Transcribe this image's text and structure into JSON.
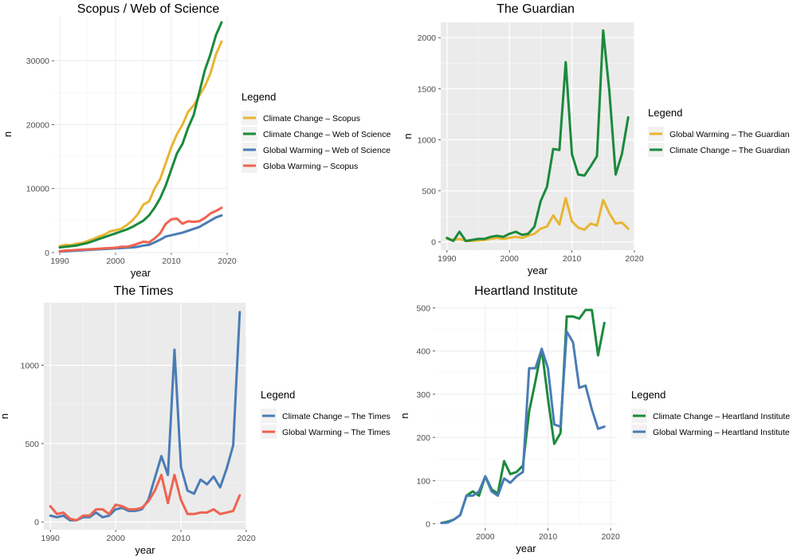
{
  "chart_data": [
    {
      "type": "line",
      "title": "Scopus / Web of Science",
      "xlabel": "year",
      "ylabel": "n",
      "xlim": [
        1989,
        2020
      ],
      "ylim": [
        0,
        37000
      ],
      "xticks": [
        1990,
        2000,
        2010,
        2020
      ],
      "yticks": [
        0,
        10000,
        20000,
        30000
      ],
      "ytick_labels": [
        "0",
        "10000",
        "20000",
        "30000"
      ],
      "background": "#ffffff",
      "grid": true,
      "legend_title": "Legend",
      "legend_position": "right",
      "series": [
        {
          "name": "Climate Change – Scopus",
          "color": "#E8B532",
          "x": [
            1990,
            1991,
            1992,
            1993,
            1994,
            1995,
            1996,
            1997,
            1998,
            1999,
            2000,
            2001,
            2002,
            2003,
            2004,
            2005,
            2006,
            2007,
            2008,
            2009,
            2010,
            2011,
            2012,
            2013,
            2014,
            2015,
            2016,
            2017,
            2018,
            2019
          ],
          "y": [
            1000,
            1200,
            1150,
            1400,
            1500,
            1800,
            2100,
            2500,
            2800,
            3300,
            3500,
            3700,
            4300,
            5000,
            6000,
            7500,
            8000,
            10000,
            11500,
            14000,
            16500,
            18500,
            20000,
            22000,
            23000,
            24500,
            26000,
            28000,
            31000,
            33000
          ]
        },
        {
          "name": "Climate Change – Web of Science",
          "color": "#1B8A3C",
          "x": [
            1990,
            1991,
            1992,
            1993,
            1994,
            1995,
            1996,
            1997,
            1998,
            1999,
            2000,
            2001,
            2002,
            2003,
            2004,
            2005,
            2006,
            2007,
            2008,
            2009,
            2010,
            2011,
            2012,
            2013,
            2014,
            2015,
            2016,
            2017,
            2018,
            2019
          ],
          "y": [
            800,
            900,
            1000,
            1100,
            1300,
            1500,
            1800,
            2100,
            2400,
            2700,
            3000,
            3300,
            3600,
            4000,
            4500,
            5000,
            5800,
            7000,
            8500,
            10500,
            13000,
            15500,
            17000,
            19500,
            21500,
            25000,
            28500,
            31000,
            34000,
            36000
          ]
        },
        {
          "name": "Global Warming – Web of Science",
          "color": "#4A7CB5",
          "x": [
            1990,
            1991,
            1992,
            1993,
            1994,
            1995,
            1996,
            1997,
            1998,
            1999,
            2000,
            2001,
            2002,
            2003,
            2004,
            2005,
            2006,
            2007,
            2008,
            2009,
            2010,
            2011,
            2012,
            2013,
            2014,
            2015,
            2016,
            2017,
            2018,
            2019
          ],
          "y": [
            150,
            200,
            250,
            300,
            350,
            400,
            450,
            500,
            550,
            600,
            650,
            700,
            750,
            800,
            900,
            1100,
            1200,
            1600,
            2000,
            2500,
            2700,
            2900,
            3100,
            3400,
            3700,
            4000,
            4500,
            5000,
            5500,
            5800
          ]
        },
        {
          "name": "Globa Warming – Scopus",
          "color": "#EE6350",
          "x": [
            1990,
            1991,
            1992,
            1993,
            1994,
            1995,
            1996,
            1997,
            1998,
            1999,
            2000,
            2001,
            2002,
            2003,
            2004,
            2005,
            2006,
            2007,
            2008,
            2009,
            2010,
            2011,
            2012,
            2013,
            2014,
            2015,
            2016,
            2017,
            2018,
            2019
          ],
          "y": [
            200,
            300,
            350,
            400,
            450,
            500,
            550,
            600,
            650,
            700,
            750,
            900,
            900,
            1100,
            1400,
            1700,
            1600,
            2200,
            3000,
            4500,
            5200,
            5300,
            4500,
            4900,
            4800,
            4900,
            5400,
            6100,
            6500,
            7000
          ]
        }
      ]
    },
    {
      "type": "line",
      "title": "The Guardian",
      "xlabel": "year",
      "ylabel": "n",
      "xlim": [
        1989,
        2020
      ],
      "ylim": [
        -80,
        2150
      ],
      "xticks": [
        1990,
        2000,
        2010,
        2020
      ],
      "yticks": [
        0,
        500,
        1000,
        1500,
        2000
      ],
      "ytick_labels": [
        "0",
        "500",
        "1000",
        "1500",
        "2000"
      ],
      "background": "#ebebeb",
      "grid": true,
      "legend_title": "Legend",
      "legend_position": "right",
      "series": [
        {
          "name": "Global Warming – The Guardian",
          "color": "#E8B532",
          "x": [
            1990,
            1991,
            1992,
            1993,
            1994,
            1995,
            1996,
            1997,
            1998,
            1999,
            2000,
            2001,
            2002,
            2003,
            2004,
            2005,
            2006,
            2007,
            2008,
            2009,
            2010,
            2011,
            2012,
            2013,
            2014,
            2015,
            2016,
            2017,
            2018,
            2019
          ],
          "y": [
            30,
            20,
            30,
            10,
            10,
            15,
            20,
            30,
            40,
            30,
            40,
            50,
            40,
            60,
            80,
            130,
            150,
            260,
            170,
            430,
            200,
            140,
            120,
            180,
            160,
            410,
            280,
            180,
            190,
            130
          ]
        },
        {
          "name": "Climate Change – The Guardian",
          "color": "#1B8A3C",
          "x": [
            1990,
            1991,
            1992,
            1993,
            1994,
            1995,
            1996,
            1997,
            1998,
            1999,
            2000,
            2001,
            2002,
            2003,
            2004,
            2005,
            2006,
            2007,
            2008,
            2009,
            2010,
            2011,
            2012,
            2013,
            2014,
            2015,
            2016,
            2017,
            2018,
            2019
          ],
          "y": [
            40,
            10,
            100,
            10,
            20,
            30,
            30,
            50,
            60,
            50,
            80,
            100,
            70,
            80,
            150,
            400,
            540,
            910,
            900,
            1760,
            860,
            660,
            650,
            740,
            840,
            2070,
            1470,
            660,
            860,
            1220
          ]
        }
      ]
    },
    {
      "type": "line",
      "title": "The Times",
      "xlabel": "year",
      "ylabel": "n",
      "xlim": [
        1989,
        2020
      ],
      "ylim": [
        -50,
        1400
      ],
      "xticks": [
        1990,
        2000,
        2010,
        2020
      ],
      "yticks": [
        0,
        500,
        1000
      ],
      "ytick_labels": [
        "0",
        "500",
        "1000"
      ],
      "background": "#ebebeb",
      "grid": true,
      "legend_title": "Legend",
      "legend_position": "right",
      "series": [
        {
          "name": "Climate Change – The Times",
          "color": "#4A7CB5",
          "x": [
            1990,
            1991,
            1992,
            1993,
            1994,
            1995,
            1996,
            1997,
            1998,
            1999,
            2000,
            2001,
            2002,
            2003,
            2004,
            2005,
            2006,
            2007,
            2008,
            2009,
            2010,
            2011,
            2012,
            2013,
            2014,
            2015,
            2016,
            2017,
            2018,
            2019
          ],
          "y": [
            40,
            30,
            40,
            10,
            10,
            30,
            30,
            60,
            30,
            40,
            80,
            90,
            70,
            70,
            80,
            140,
            280,
            420,
            300,
            1100,
            350,
            200,
            180,
            270,
            240,
            290,
            220,
            340,
            490,
            1340
          ]
        },
        {
          "name": "Global Warming – The Times",
          "color": "#EE6350",
          "x": [
            1990,
            1991,
            1992,
            1993,
            1994,
            1995,
            1996,
            1997,
            1998,
            1999,
            2000,
            2001,
            2002,
            2003,
            2004,
            2005,
            2006,
            2007,
            2008,
            2009,
            2010,
            2011,
            2012,
            2013,
            2014,
            2015,
            2016,
            2017,
            2018,
            2019
          ],
          "y": [
            100,
            50,
            60,
            20,
            10,
            40,
            40,
            80,
            80,
            50,
            110,
            100,
            80,
            80,
            90,
            130,
            200,
            300,
            120,
            300,
            140,
            50,
            50,
            60,
            60,
            80,
            50,
            60,
            70,
            170
          ]
        }
      ]
    },
    {
      "type": "line",
      "title": "Heartland Institute",
      "xlabel": "year",
      "ylabel": "n",
      "xlim": [
        1992,
        2021
      ],
      "ylim": [
        -10,
        510
      ],
      "xticks": [
        2000,
        2010,
        2020
      ],
      "yticks": [
        0,
        100,
        200,
        300,
        400,
        500
      ],
      "ytick_labels": [
        "0",
        "100",
        "200",
        "300",
        "400",
        "500"
      ],
      "background": "#ffffff",
      "grid": true,
      "legend_title": "Legend",
      "legend_position": "right",
      "series": [
        {
          "name": "Climate Change – Heartland Institute",
          "color": "#1B8A3C",
          "x": [
            1993,
            1994,
            1995,
            1996,
            1997,
            1998,
            1999,
            2000,
            2001,
            2002,
            2003,
            2004,
            2005,
            2006,
            2007,
            2008,
            2009,
            2010,
            2011,
            2012,
            2013,
            2014,
            2015,
            2016,
            2017,
            2018,
            2019
          ],
          "y": [
            2,
            5,
            10,
            20,
            65,
            75,
            65,
            110,
            80,
            70,
            145,
            115,
            120,
            135,
            260,
            330,
            405,
            290,
            185,
            210,
            480,
            480,
            475,
            495,
            495,
            390,
            465
          ]
        },
        {
          "name": "Global Warming – Heartland Institute",
          "color": "#4A7CB5",
          "x": [
            1993,
            1994,
            1995,
            1996,
            1997,
            1998,
            1999,
            2000,
            2001,
            2002,
            2003,
            2004,
            2005,
            2006,
            2007,
            2008,
            2009,
            2010,
            2011,
            2012,
            2013,
            2014,
            2015,
            2016,
            2017,
            2018,
            2019
          ],
          "y": [
            2,
            3,
            10,
            20,
            65,
            65,
            75,
            110,
            75,
            65,
            105,
            95,
            110,
            120,
            360,
            360,
            405,
            360,
            230,
            225,
            445,
            420,
            315,
            320,
            265,
            220,
            225
          ]
        }
      ]
    }
  ]
}
